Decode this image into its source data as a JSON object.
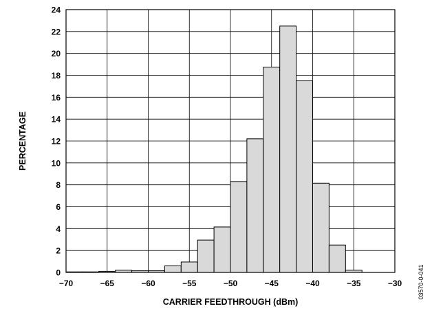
{
  "chart_data": {
    "type": "bar",
    "xlabel": "CARRIER FEEDTHROUGH (dBm)",
    "ylabel": "PERCENTAGE",
    "xlim": [
      -70,
      -30
    ],
    "ylim": [
      0,
      24
    ],
    "xticks": [
      -70,
      -65,
      -60,
      -55,
      -50,
      -45,
      -40,
      -35,
      -30
    ],
    "yticks": [
      0,
      2,
      4,
      6,
      8,
      10,
      12,
      14,
      16,
      18,
      20,
      22,
      24
    ],
    "x_tick_labels": [
      "−70",
      "−65",
      "−60",
      "−55",
      "−50",
      "−45",
      "−40",
      "−35",
      "−30"
    ],
    "y_tick_labels": [
      "0",
      "2",
      "4",
      "6",
      "8",
      "10",
      "12",
      "14",
      "16",
      "18",
      "20",
      "22",
      "24"
    ],
    "grid": true,
    "bin_width": 2,
    "bins": [
      {
        "start": -70,
        "end": -68,
        "value": 0.05
      },
      {
        "start": -68,
        "end": -66,
        "value": 0.05
      },
      {
        "start": -66,
        "end": -64,
        "value": 0.1
      },
      {
        "start": -64,
        "end": -62,
        "value": 0.2
      },
      {
        "start": -62,
        "end": -60,
        "value": 0.15
      },
      {
        "start": -60,
        "end": -58,
        "value": 0.15
      },
      {
        "start": -58,
        "end": -56,
        "value": 0.6
      },
      {
        "start": -56,
        "end": -54,
        "value": 0.95
      },
      {
        "start": -54,
        "end": -52,
        "value": 2.95
      },
      {
        "start": -52,
        "end": -50,
        "value": 4.15
      },
      {
        "start": -50,
        "end": -48,
        "value": 8.3
      },
      {
        "start": -48,
        "end": -46,
        "value": 12.2
      },
      {
        "start": -46,
        "end": -44,
        "value": 18.75
      },
      {
        "start": -44,
        "end": -42,
        "value": 22.5
      },
      {
        "start": -42,
        "end": -40,
        "value": 17.5
      },
      {
        "start": -40,
        "end": -38,
        "value": 8.15
      },
      {
        "start": -38,
        "end": -36,
        "value": 2.5
      },
      {
        "start": -36,
        "end": -34,
        "value": 0.2
      }
    ],
    "bar_color": "#d9d9d9",
    "edge_color": "#000000"
  },
  "figure_code": "03570-0-041"
}
